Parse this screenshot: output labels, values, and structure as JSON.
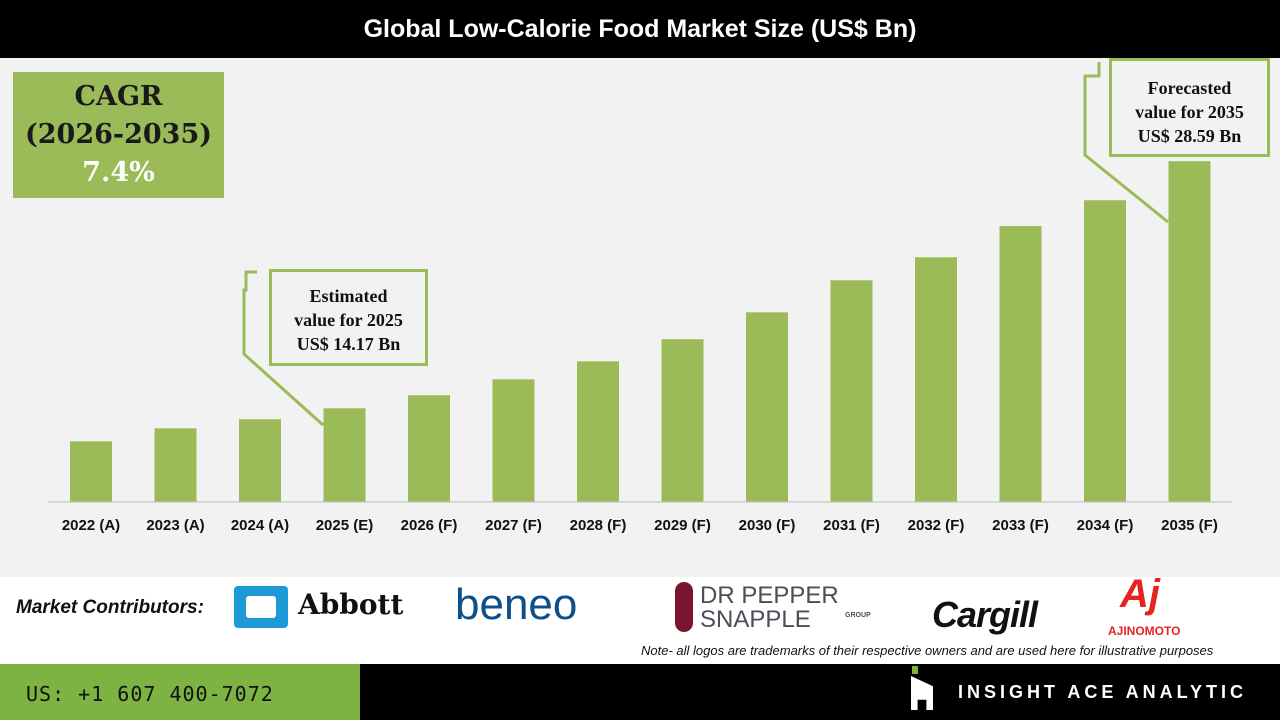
{
  "title": "Global Low-Calorie Food Market Size (US$ Bn)",
  "cagr": {
    "label": "CAGR",
    "period": "(2026-2035)",
    "value": "7.4%"
  },
  "callouts": {
    "estimated": {
      "line1": "Estimated",
      "line2": "value for 2025",
      "line3": "US$ 14.17 Bn"
    },
    "forecasted": {
      "line1": "Forecasted",
      "line2": "value for 2035",
      "line3": "US$ 28.59 Bn"
    }
  },
  "chart_data": {
    "type": "bar",
    "title": "Global Low-Calorie Food Market Size (US$ Bn)",
    "categories": [
      "2022 (A)",
      "2023 (A)",
      "2024 (A)",
      "2025 (E)",
      "2026 (F)",
      "2027 (F)",
      "2028 (F)",
      "2029 (F)",
      "2030 (F)",
      "2031 (F)",
      "2032 (F)",
      "2033 (F)",
      "2034 (F)",
      "2035 (F)"
    ],
    "values": [
      12.24,
      13.0,
      13.53,
      14.17,
      14.93,
      15.86,
      16.91,
      18.2,
      19.77,
      21.64,
      22.98,
      24.8,
      26.31,
      28.59
    ],
    "ylim": [
      8.7,
      30
    ],
    "grid": false,
    "bar_color": "#9bbb59"
  },
  "contributors": {
    "label": "Market Contributors:",
    "logos": [
      "Abbott",
      "beneo",
      "DR PEPPER",
      "SNAPPLE",
      "GROUP",
      "Cargill",
      "Aj",
      "AJINOMOTO"
    ]
  },
  "note": "Note- all logos are trademarks of their respective owners and are used here for illustrative purposes",
  "footer": {
    "phone": "US: +1 607 400-7072",
    "brand": "INSIGHT ACE ANALYTIC"
  },
  "colors": {
    "accent": "#9bbb59",
    "footer_green": "#7cb342"
  }
}
